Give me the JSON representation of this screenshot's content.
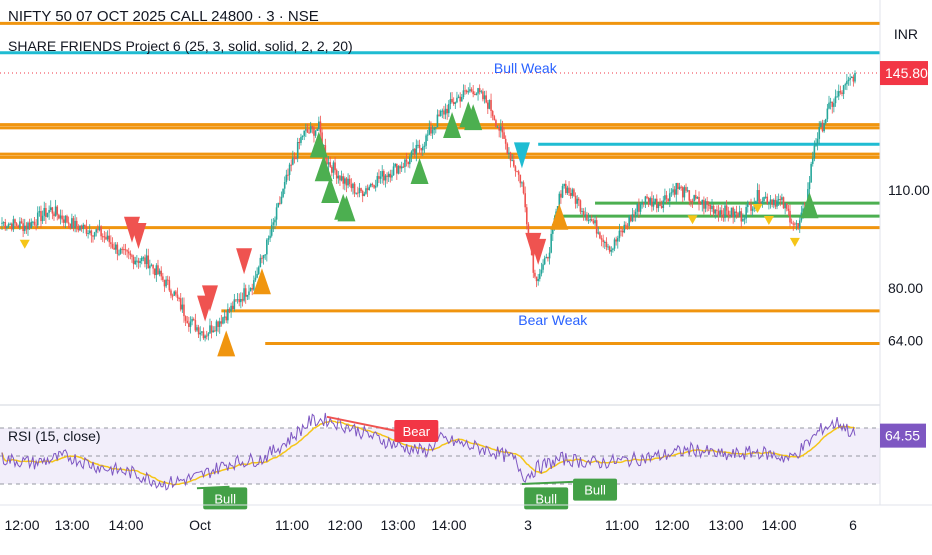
{
  "header": {
    "symbol_title": "NIFTY 50 07 OCT 2025 CALL 24800 · 3 · NSE",
    "indicator_title": "SHARE FRIENDS Project 6 (25, 3, solid, solid, 2, 2, 20)",
    "currency": "INR"
  },
  "colors": {
    "up": "#26a69a",
    "down": "#ef5350",
    "level_line": "#f0950f",
    "cyan_line": "#1fbcd2",
    "green_line": "#4caf50",
    "price_badge": "#f23645",
    "rsi_line": "#7e57c2",
    "rsi_ma": "#f5c518",
    "rsi_badge": "#7e57c2",
    "bear_badge": "#f23645",
    "bull_badge": "#43a047"
  },
  "chart_data": [
    {
      "type": "candlestick",
      "title": "NIFTY 50 07 OCT 2025 CALL 24800 · 3 · NSE",
      "x_tick_labels": [
        "12:00",
        "13:00",
        "14:00",
        "Oct",
        "11:00",
        "12:00",
        "13:00",
        "14:00",
        "3",
        "11:00",
        "12:00",
        "13:00",
        "14:00",
        "6"
      ],
      "y_tick_labels": [
        "110.00",
        "80.00",
        "64.00"
      ],
      "ylim": [
        48,
        165
      ],
      "last_price_label": "145.80",
      "last_price": 145.8,
      "annotations": [
        "Bull Weak",
        "Bear Weak"
      ],
      "close_anchors": [
        [
          0,
          100
        ],
        [
          15,
          99
        ],
        [
          30,
          104
        ],
        [
          45,
          99
        ],
        [
          60,
          97
        ],
        [
          75,
          90
        ],
        [
          90,
          88
        ],
        [
          105,
          79
        ],
        [
          115,
          70
        ],
        [
          125,
          66
        ],
        [
          140,
          73
        ],
        [
          155,
          82
        ],
        [
          165,
          96
        ],
        [
          175,
          113
        ],
        [
          185,
          127
        ],
        [
          195,
          129
        ],
        [
          200,
          119
        ],
        [
          210,
          113
        ],
        [
          220,
          109
        ],
        [
          230,
          113
        ],
        [
          240,
          116
        ],
        [
          250,
          119
        ],
        [
          260,
          125
        ],
        [
          270,
          133
        ],
        [
          280,
          138
        ],
        [
          290,
          141
        ],
        [
          300,
          136
        ],
        [
          305,
          130
        ],
        [
          320,
          112
        ],
        [
          328,
          83
        ],
        [
          335,
          88
        ],
        [
          345,
          112
        ],
        [
          355,
          106
        ],
        [
          365,
          99
        ],
        [
          375,
          92
        ],
        [
          385,
          100
        ],
        [
          395,
          107
        ],
        [
          405,
          106
        ],
        [
          415,
          111
        ],
        [
          425,
          107
        ],
        [
          440,
          104
        ],
        [
          455,
          102
        ],
        [
          465,
          108
        ],
        [
          475,
          107
        ],
        [
          480,
          106
        ],
        [
          490,
          98
        ],
        [
          495,
          106
        ],
        [
          500,
          124
        ],
        [
          505,
          130
        ],
        [
          510,
          136
        ],
        [
          515,
          139
        ],
        [
          520,
          142
        ],
        [
          525,
          145.8
        ]
      ],
      "horizontal_levels": [
        {
          "value": 161,
          "color": "orange"
        },
        {
          "value": 152,
          "color": "cyan"
        },
        {
          "value": 130,
          "color": "orange"
        },
        {
          "value": 129,
          "color": "orange"
        },
        {
          "value": 121,
          "color": "orange"
        },
        {
          "value": 120,
          "color": "orange"
        },
        {
          "value": 124,
          "color": "cyan",
          "from_index": 330
        },
        {
          "value": 106,
          "color": "green",
          "from_index": 365
        },
        {
          "value": 102,
          "color": "green",
          "from_index": 340
        },
        {
          "value": 98.5,
          "color": "orange"
        },
        {
          "value": 73,
          "color": "orange",
          "from_index": 135
        },
        {
          "value": 63,
          "color": "orange",
          "from_index": 162
        }
      ],
      "signals": [
        {
          "i": 14,
          "type": "sell-small"
        },
        {
          "i": 80,
          "type": "sell"
        },
        {
          "i": 84,
          "type": "sell"
        },
        {
          "i": 125,
          "type": "sell"
        },
        {
          "i": 128,
          "type": "sell"
        },
        {
          "i": 149,
          "type": "sell"
        },
        {
          "i": 138,
          "type": "buy-orange"
        },
        {
          "i": 160,
          "type": "buy-orange"
        },
        {
          "i": 195,
          "type": "buy"
        },
        {
          "i": 198,
          "type": "buy"
        },
        {
          "i": 202,
          "type": "buy"
        },
        {
          "i": 210,
          "type": "buy"
        },
        {
          "i": 212,
          "type": "buy"
        },
        {
          "i": 257,
          "type": "buy"
        },
        {
          "i": 277,
          "type": "buy"
        },
        {
          "i": 287,
          "type": "buy"
        },
        {
          "i": 290,
          "type": "buy"
        },
        {
          "i": 320,
          "type": "sell-cyan"
        },
        {
          "i": 327,
          "type": "sell"
        },
        {
          "i": 330,
          "type": "sell"
        },
        {
          "i": 343,
          "type": "buy-orange"
        },
        {
          "i": 425,
          "type": "sell-small"
        },
        {
          "i": 465,
          "type": "sell-small"
        },
        {
          "i": 472,
          "type": "sell-small"
        },
        {
          "i": 488,
          "type": "sell-small"
        },
        {
          "i": 497,
          "type": "buy"
        }
      ]
    },
    {
      "type": "line",
      "title": "RSI (15, close)",
      "current_label": "64.55",
      "current_value": 64.55,
      "ylim": [
        20,
        85
      ],
      "levels": [
        70,
        50,
        30
      ],
      "annotations": [
        "Bear",
        "Bull",
        "Bull",
        "Bull"
      ],
      "rsi_anchors": [
        [
          0,
          48
        ],
        [
          20,
          45
        ],
        [
          40,
          50
        ],
        [
          60,
          42
        ],
        [
          80,
          38
        ],
        [
          100,
          30
        ],
        [
          120,
          35
        ],
        [
          140,
          45
        ],
        [
          160,
          48
        ],
        [
          175,
          60
        ],
        [
          190,
          75
        ],
        [
          200,
          76
        ],
        [
          215,
          70
        ],
        [
          230,
          63
        ],
        [
          245,
          57
        ],
        [
          260,
          53
        ],
        [
          270,
          62
        ],
        [
          285,
          58
        ],
        [
          300,
          54
        ],
        [
          315,
          48
        ],
        [
          322,
          35
        ],
        [
          330,
          42
        ],
        [
          345,
          48
        ],
        [
          365,
          45
        ],
        [
          385,
          47
        ],
        [
          405,
          50
        ],
        [
          425,
          55
        ],
        [
          445,
          50
        ],
        [
          465,
          53
        ],
        [
          485,
          48
        ],
        [
          495,
          58
        ],
        [
          505,
          70
        ],
        [
          515,
          74
        ],
        [
          525,
          64.55
        ]
      ]
    }
  ]
}
